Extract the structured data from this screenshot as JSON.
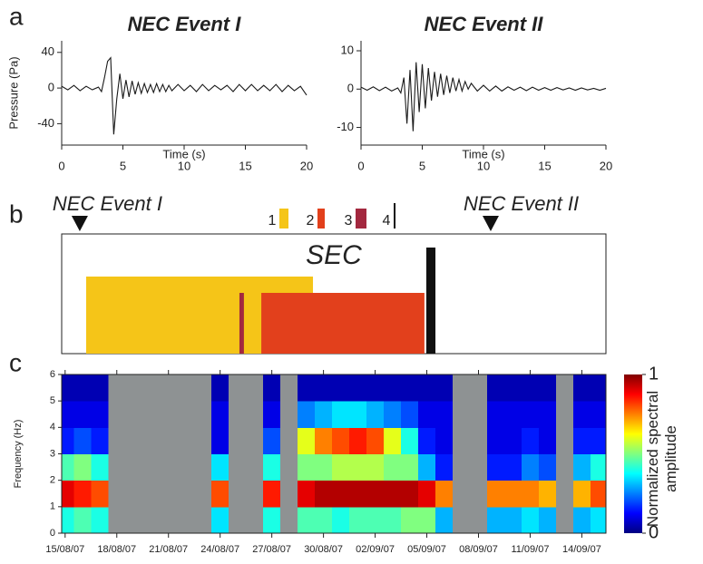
{
  "chart_data": [
    {
      "type": "line",
      "panel_label": "a",
      "title": "NEC Event I",
      "xlabel": "Time (s)",
      "ylabel": "Pressure (Pa)",
      "x": [
        0,
        0.5,
        1,
        1.5,
        2,
        2.5,
        3,
        3.25,
        3.5,
        3.75,
        4,
        4.25,
        4.5,
        4.75,
        5,
        5.25,
        5.5,
        5.75,
        6,
        6.25,
        6.5,
        6.75,
        7,
        7.25,
        7.5,
        7.75,
        8,
        8.25,
        8.5,
        8.75,
        9,
        9.5,
        10,
        10.5,
        11,
        11.5,
        12,
        12.5,
        13,
        13.5,
        14,
        14.5,
        15,
        15.5,
        16,
        16.5,
        17,
        17.5,
        18,
        18.5,
        19,
        19.5,
        20
      ],
      "series": [
        {
          "color": "#1a1a1a",
          "values": [
            2,
            -2,
            3,
            -3,
            2,
            -2,
            1,
            -4,
            12,
            30,
            34,
            -52,
            -12,
            16,
            -12,
            9,
            -10,
            8,
            -7,
            6,
            -6,
            5,
            -5,
            4,
            -5,
            5,
            -4,
            4,
            -4,
            3,
            -3,
            4,
            -3,
            3,
            -4,
            4,
            -3,
            3,
            -2,
            3,
            -4,
            4,
            -3,
            4,
            -3,
            3,
            -3,
            4,
            -4,
            3,
            -3,
            2,
            -8
          ]
        }
      ],
      "xlim": [
        0,
        20
      ],
      "ylim": [
        -64,
        53
      ],
      "xticks": [
        0,
        5,
        10,
        15,
        20
      ],
      "yticks": [
        -40,
        0,
        40
      ]
    },
    {
      "type": "line",
      "title": "NEC Event II",
      "xlabel": "Time (s)",
      "x": [
        0,
        0.5,
        1,
        1.5,
        2,
        2.5,
        3,
        3.25,
        3.5,
        3.75,
        4,
        4.25,
        4.5,
        4.75,
        5,
        5.25,
        5.5,
        5.75,
        6,
        6.25,
        6.5,
        6.75,
        7,
        7.25,
        7.5,
        7.75,
        8,
        8.25,
        8.5,
        8.75,
        9,
        9.5,
        10,
        10.5,
        11,
        11.5,
        12,
        12.5,
        13,
        13.5,
        14,
        14.5,
        15,
        15.5,
        16,
        16.5,
        17,
        17.5,
        18,
        18.5,
        19,
        19.5,
        20
      ],
      "series": [
        {
          "color": "#1a1a1a",
          "values": [
            0.5,
            -0.3,
            0.6,
            -0.4,
            0.5,
            -0.5,
            0.3,
            -1,
            3,
            -9,
            5,
            -11,
            7,
            -6,
            6.5,
            -5,
            5.5,
            -3,
            4.5,
            -2,
            4,
            -1.5,
            3.5,
            -1,
            3,
            -0.5,
            2.5,
            -0.5,
            2,
            0,
            1.5,
            -0.5,
            1,
            -0.5,
            0.8,
            -0.5,
            0.6,
            -0.3,
            0.5,
            -0.4,
            0.5,
            -0.3,
            0.4,
            -0.3,
            0.4,
            -0.2,
            0.3,
            -0.3,
            0.3,
            -0.2,
            0.2,
            -0.3,
            0.2
          ]
        }
      ],
      "xlim": [
        0,
        20
      ],
      "ylim": [
        -14.6,
        12.6
      ],
      "xticks": [
        0,
        5,
        10,
        15,
        20
      ],
      "yticks": [
        -10,
        0,
        10
      ]
    },
    {
      "type": "timeline",
      "panel_label": "b",
      "label": "SEC",
      "xlim": [
        -0.2,
        31.4
      ],
      "events": [
        {
          "name": "NEC Event I",
          "x": 0.85
        },
        {
          "name": "NEC Event II",
          "x": 24.71
        }
      ],
      "phases": [
        {
          "name": "1",
          "color": "#f5c518",
          "start": 1.22,
          "end": 14.39
        },
        {
          "name": "2",
          "color": "#e2401c",
          "start": 11.39,
          "end": 20.86
        },
        {
          "name": "3",
          "color": "#a3283f",
          "start": 10.12,
          "end": 10.38
        },
        {
          "name": "4",
          "color": "#111111",
          "start": 20.97,
          "end": 21.5
        }
      ]
    },
    {
      "type": "heatmap",
      "panel_label": "c",
      "ylabel": "Frequency (Hz)",
      "xlim": [
        -0.2,
        31.4
      ],
      "ylim": [
        0,
        6
      ],
      "xticks": [
        {
          "value": 0,
          "label": "15/08/07"
        },
        {
          "value": 3,
          "label": "18/08/07"
        },
        {
          "value": 6,
          "label": "21/08/07"
        },
        {
          "value": 9,
          "label": "24/08/07"
        },
        {
          "value": 12,
          "label": "27/08/07"
        },
        {
          "value": 15,
          "label": "30/08/07"
        },
        {
          "value": 18,
          "label": "02/09/07"
        },
        {
          "value": 21,
          "label": "05/09/07"
        },
        {
          "value": 24,
          "label": "08/09/07"
        },
        {
          "value": 27,
          "label": "11/09/07"
        },
        {
          "value": 30,
          "label": "14/09/07"
        }
      ],
      "yticks": [
        0,
        1,
        2,
        3,
        4,
        5,
        6
      ],
      "x": [
        0,
        1,
        2,
        3,
        4,
        5,
        6,
        7,
        8,
        9,
        10,
        11,
        12,
        13,
        14,
        15,
        16,
        17,
        18,
        19,
        20,
        21,
        22,
        23,
        24,
        25,
        26,
        27,
        28,
        29,
        30,
        31
      ],
      "y": [
        0.5,
        1.5,
        2.5,
        3.5,
        4.5,
        5.5
      ],
      "z": [
        [
          0.4,
          0.45,
          0.4,
          null,
          null,
          null,
          null,
          null,
          null,
          0.35,
          null,
          null,
          0.4,
          null,
          0.45,
          0.45,
          0.4,
          0.45,
          0.45,
          0.45,
          0.5,
          0.5,
          0.3,
          null,
          null,
          0.3,
          0.3,
          0.35,
          0.3,
          null,
          0.3,
          0.35
        ],
        [
          0.9,
          0.85,
          0.8,
          null,
          null,
          null,
          null,
          null,
          null,
          0.8,
          null,
          null,
          0.85,
          null,
          0.9,
          0.95,
          0.95,
          0.95,
          0.95,
          0.95,
          0.95,
          0.9,
          0.75,
          null,
          null,
          0.75,
          0.75,
          0.75,
          0.7,
          null,
          0.7,
          0.8
        ],
        [
          0.45,
          0.5,
          0.4,
          null,
          null,
          null,
          null,
          null,
          null,
          0.35,
          null,
          null,
          0.4,
          null,
          0.5,
          0.5,
          0.55,
          0.55,
          0.55,
          0.5,
          0.5,
          0.3,
          0.15,
          null,
          null,
          0.15,
          0.15,
          0.25,
          0.2,
          null,
          0.3,
          0.4
        ],
        [
          0.15,
          0.2,
          0.15,
          null,
          null,
          null,
          null,
          null,
          null,
          0.1,
          null,
          null,
          0.2,
          null,
          0.6,
          0.75,
          0.8,
          0.85,
          0.8,
          0.6,
          0.4,
          0.15,
          0.1,
          null,
          null,
          0.1,
          0.1,
          0.15,
          0.1,
          null,
          0.15,
          0.15
        ],
        [
          0.1,
          0.1,
          0.1,
          null,
          null,
          null,
          null,
          null,
          null,
          0.1,
          null,
          null,
          0.1,
          null,
          0.25,
          0.3,
          0.35,
          0.35,
          0.3,
          0.25,
          0.2,
          0.1,
          0.1,
          null,
          null,
          0.1,
          0.1,
          0.1,
          0.1,
          null,
          0.1,
          0.1
        ],
        [
          0.05,
          0.05,
          0.05,
          null,
          null,
          null,
          null,
          null,
          null,
          0.05,
          null,
          null,
          0.05,
          null,
          0.05,
          0.05,
          0.05,
          0.05,
          0.05,
          0.05,
          0.05,
          0.05,
          0.05,
          null,
          null,
          0.05,
          0.05,
          0.05,
          0.05,
          null,
          0.05,
          0.05
        ]
      ],
      "gap_color": "#8e9293",
      "colorbar": {
        "label": "Normalized spectral amplitude",
        "zlim": [
          0,
          1
        ],
        "zticks": [
          0,
          1
        ]
      }
    }
  ]
}
